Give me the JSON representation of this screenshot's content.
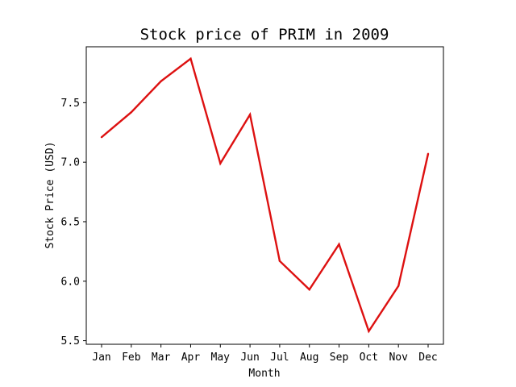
{
  "chart_data": {
    "type": "line",
    "title": "Stock price of PRIM in 2009",
    "xlabel": "Month",
    "ylabel": "Stock Price (USD)",
    "categories": [
      "Jan",
      "Feb",
      "Mar",
      "Apr",
      "May",
      "Jun",
      "Jul",
      "Aug",
      "Sep",
      "Oct",
      "Nov",
      "Dec"
    ],
    "series": [
      {
        "values": [
          7.21,
          7.42,
          7.68,
          7.87,
          6.99,
          7.4,
          6.17,
          5.93,
          6.31,
          5.58,
          5.96,
          7.07
        ],
        "color": "#dd1111"
      }
    ],
    "ylim": [
      5.47,
      7.97
    ],
    "yticks": [
      5.5,
      6.0,
      6.5,
      7.0,
      7.5
    ],
    "ytick_labels": [
      "5.5",
      "6.0",
      "6.5",
      "7.0",
      "7.5"
    ],
    "grid": false,
    "legend": false
  }
}
